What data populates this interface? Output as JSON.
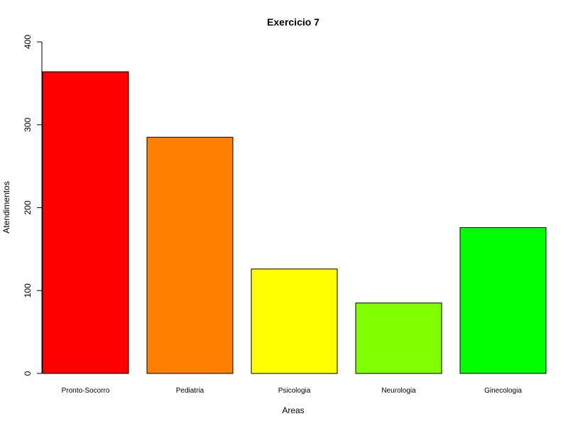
{
  "chart_data": {
    "type": "bar",
    "title": "Exercicio 7",
    "xlabel": "Areas",
    "ylabel": "Atendimentos",
    "categories": [
      "Pronto-Socorro",
      "Pediatria",
      "Psicologia",
      "Neurologia",
      "Ginecologia"
    ],
    "values": [
      364,
      285,
      126,
      85,
      176
    ],
    "colors": [
      "#ff0000",
      "#ff8000",
      "#ffff00",
      "#80ff00",
      "#00ff00"
    ],
    "ylim": [
      0,
      400
    ],
    "yticks": [
      "0",
      "100",
      "200",
      "300",
      "400"
    ],
    "grid": false,
    "legend": "none"
  }
}
